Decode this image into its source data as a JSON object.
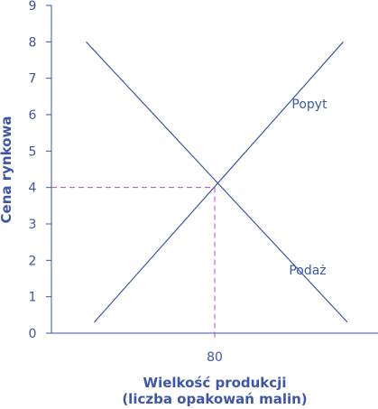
{
  "chart_data": {
    "type": "line",
    "xlabel": "Wielkość produkcji",
    "xlabel2": "(liczba opakowań malin)",
    "ylabel": "Cena rynkowa",
    "ylim": [
      0,
      9
    ],
    "xlim": [
      0,
      160
    ],
    "y_ticks": [
      "0",
      "1",
      "2",
      "3",
      "4",
      "5",
      "6",
      "7",
      "8",
      "9"
    ],
    "x_ticks": [
      {
        "value": 80,
        "label": "80"
      }
    ],
    "series": [
      {
        "name": "Popyt",
        "points": [
          [
            17,
            8
          ],
          [
            145,
            0.3
          ]
        ]
      },
      {
        "name": "Podaż",
        "points": [
          [
            21,
            0.3
          ],
          [
            143,
            8
          ]
        ]
      }
    ],
    "equilibrium": {
      "x": 80,
      "y": 4
    },
    "colors": {
      "axis": "#3d56a8",
      "line": "#3d56a8",
      "guide": "#b24fc0",
      "text": "#3d56a8"
    }
  }
}
